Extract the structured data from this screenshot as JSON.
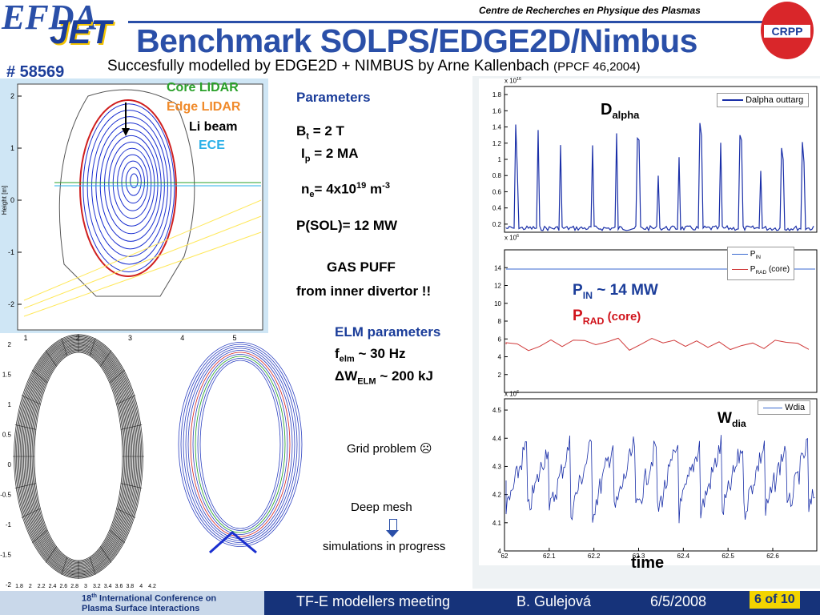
{
  "header": {
    "org": "Centre de Recherches en Physique des Plasmas",
    "title": "Benchmark SOLPS/EDGE2D/Nimbus",
    "logo_efda": "EFDA",
    "logo_jet": "JET",
    "logo_crpp": "CRPP",
    "shot": "# 58569",
    "subtitle": "Succesfully modelled by EDGE2D + NIMBUS by Arne Kallenbach",
    "subtitle_ref": "(PPCF 46,2004)"
  },
  "equilibrium_plot": {
    "ylabel": "Height [m]",
    "yticks": [
      2,
      1,
      0,
      -1,
      -2
    ],
    "xticks": [
      1,
      2,
      3,
      4,
      5
    ],
    "diagnostics": [
      "Core LIDAR",
      "Edge LIDAR",
      "Li beam",
      "ECE"
    ]
  },
  "mesh_plot": {
    "yticks": [
      2,
      1.5,
      1,
      0.5,
      0,
      -0.5,
      -1,
      -1.5,
      -2
    ],
    "xticks": [
      1.8,
      2,
      2.2,
      2.4,
      2.6,
      2.8,
      3,
      3.2,
      3.4,
      3.6,
      3.8,
      4,
      4.2
    ]
  },
  "parameters": {
    "heading": "Parameters",
    "bt": {
      "base": "B",
      "sub": "t",
      "rest": " = 2 T"
    },
    "ip": {
      "base": "I",
      "sub": "p",
      "rest": " = 2 MA"
    },
    "ne": {
      "base": "n",
      "sub": "e",
      "mid": "= 4x10",
      "sup": "19",
      "unit": " m",
      "unit_sup": "-3"
    },
    "psol": "P(SOL)= 12 MW",
    "gas1": "GAS PUFF",
    "gas2": "from inner divertor !!"
  },
  "elm": {
    "heading": "ELM parameters",
    "f": {
      "base": "f",
      "sub": "elm",
      "rest": " ~ 30 Hz"
    },
    "w": {
      "base": "ΔW",
      "sub": "ELM",
      "rest": " ~ 200 kJ"
    }
  },
  "notes": {
    "grid": "Grid problem ☹",
    "mesh": "Deep mesh",
    "sim": "simulations in progress"
  },
  "traces": {
    "dalpha": {
      "base": "D",
      "sub": "alpha",
      "legend": "Dalpha outtarg",
      "exp": "x 10",
      "exp_sup": "16",
      "yticks": [
        1.8,
        1.6,
        1.4,
        1.2,
        1,
        0.8,
        0.6,
        0.4,
        0.2
      ]
    },
    "power": {
      "pin_base": "P",
      "pin_sub": "IN",
      "pin_rest": " ~ 14 MW",
      "prad_base": "P",
      "prad_sub": "RAD",
      "prad_rest": " (core)",
      "legend_pin_base": "P",
      "legend_pin_sub": "IN",
      "legend_prad_base": "P",
      "legend_prad_sub": "RAD",
      "legend_prad_rest": " (core)",
      "exp": "x 10",
      "exp_sup": "6",
      "yticks": [
        14,
        12,
        10,
        8,
        6,
        4,
        2
      ]
    },
    "wdia": {
      "base": "W",
      "sub": "dia",
      "legend": "Wdia",
      "exp": "x 10",
      "exp_sup": "6",
      "yticks": [
        4.5,
        4.4,
        4.3,
        4.2,
        4.1,
        4
      ]
    },
    "xticks": [
      62,
      62.1,
      62.2,
      62.3,
      62.4,
      62.5,
      62.6
    ],
    "xlabel": "time"
  },
  "footer": {
    "conf_num": "18",
    "conf_sup": "th",
    "conf1": " International Conference on",
    "conf2": "Plasma Surface Interactions",
    "meeting": "TF-E modellers meeting",
    "author": "B. Gulejová",
    "date": "6/5/2008",
    "page": "6 of 10"
  }
}
